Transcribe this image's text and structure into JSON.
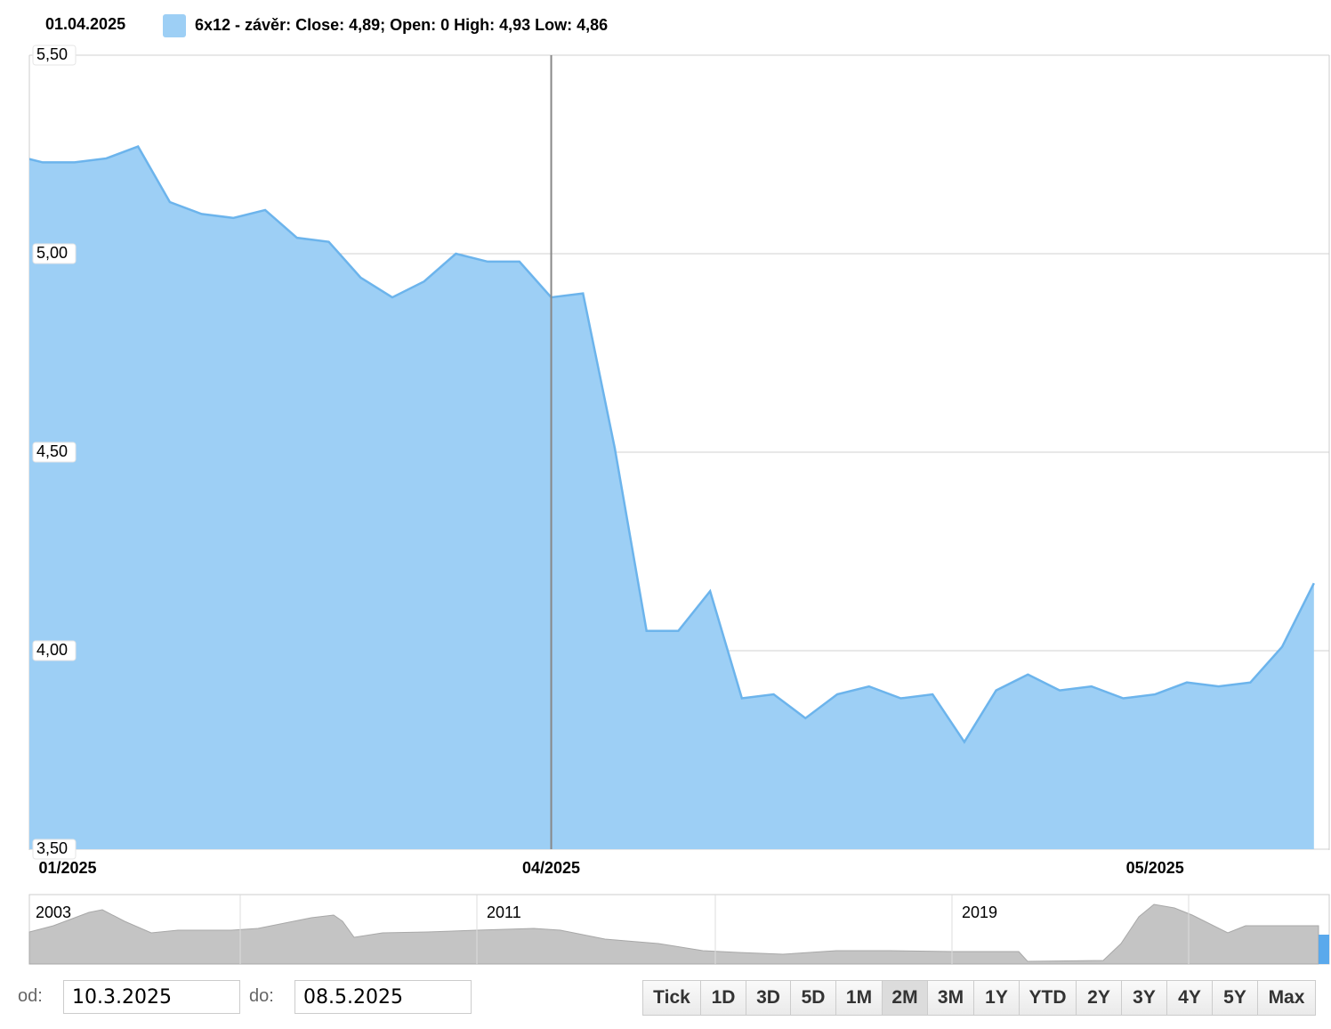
{
  "chart_data": {
    "type": "area",
    "header_date": "01.04.2025",
    "legend_text": "6x12 - závěr: Close: 4,89; Open: 0 High: 4,93 Low: 4,86",
    "color": "#9dcff5",
    "line_color": "#6cb4ec",
    "categories": [
      "01/2025",
      null,
      null,
      null,
      null,
      null,
      null,
      null,
      null,
      null,
      null,
      null,
      null,
      null,
      null,
      null,
      null,
      "04/2025",
      null,
      null,
      null,
      null,
      null,
      null,
      null,
      null,
      null,
      null,
      null,
      null,
      null,
      null,
      null,
      null,
      null,
      null,
      "05/2025",
      null,
      null,
      null,
      null,
      null
    ],
    "values": [
      5.25,
      5.23,
      5.23,
      5.24,
      5.27,
      5.13,
      5.1,
      5.09,
      5.11,
      5.04,
      5.03,
      4.94,
      4.89,
      4.93,
      5.0,
      4.98,
      4.98,
      4.89,
      4.9,
      4.51,
      4.05,
      4.05,
      4.15,
      3.88,
      3.89,
      3.83,
      3.89,
      3.91,
      3.88,
      3.89,
      3.77,
      3.9,
      3.94,
      3.9,
      3.91,
      3.88,
      3.89,
      3.92,
      3.91,
      3.92,
      4.01,
      4.17
    ],
    "crosshair_index": 17,
    "ylim": [
      3.5,
      5.5
    ],
    "yticks": [
      {
        "value": 3.5,
        "label": "3,50"
      },
      {
        "value": 4,
        "label": "4,00"
      },
      {
        "value": 4.5,
        "label": "4,50"
      },
      {
        "value": 5,
        "label": "5,00"
      },
      {
        "value": 5.5,
        "label": "5,50"
      }
    ],
    "grid": true
  },
  "navigator": {
    "labels": [
      "2003",
      "2011",
      "2019"
    ]
  },
  "controls": {
    "from_label": "od:",
    "from_value": "10.3.2025",
    "to_label": "do:",
    "to_value": "08.5.2025",
    "buttons": [
      "Tick",
      "1D",
      "3D",
      "5D",
      "1M",
      "2M",
      "3M",
      "1Y",
      "YTD",
      "2Y",
      "3Y",
      "4Y",
      "5Y",
      "Max"
    ],
    "active": "2M"
  }
}
